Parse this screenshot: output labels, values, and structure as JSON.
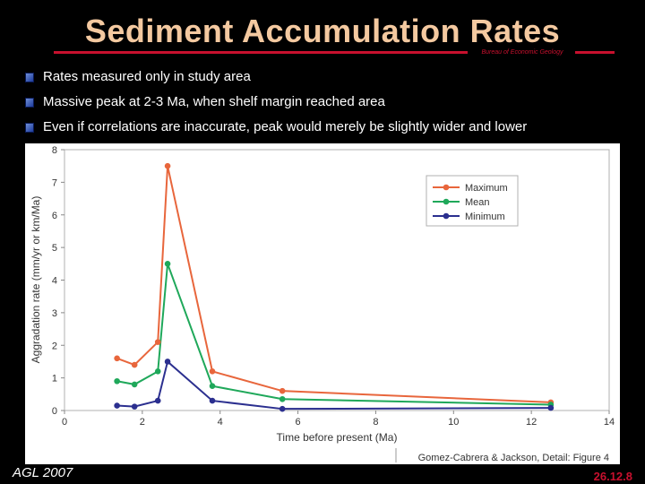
{
  "slide": {
    "title": "Sediment Accumulation Rates",
    "org_label": "Bureau of Economic Geology",
    "bullets": [
      "Rates measured only in study area",
      "Massive peak at 2-3 Ma, when shelf margin reached area",
      "Even if correlations are inaccurate, peak would merely be slightly wider and lower"
    ],
    "footer_left": "AGL 2007",
    "footer_right": "26.12.8",
    "accent_color": "#c8102e",
    "title_color": "#f4c9a0"
  },
  "chart_data": {
    "type": "line",
    "xlabel": "Time before present (Ma)",
    "ylabel": "Aggradation rate (mm/yr or km/Ma)",
    "xlim": [
      0,
      14
    ],
    "ylim": [
      0,
      8
    ],
    "xticks": [
      "0",
      "2",
      "4",
      "6",
      "8",
      "10",
      "12",
      "14"
    ],
    "yticks": [
      "0",
      "1",
      "2",
      "3",
      "4",
      "5",
      "6",
      "7",
      "8"
    ],
    "grid": false,
    "legend_position": "top-right",
    "caption": "Gomez-Cabrera & Jackson, Detail: Figure 4",
    "series": [
      {
        "name": "Maximum",
        "color": "#e8663c",
        "x": [
          1.35,
          1.8,
          2.4,
          2.65,
          3.8,
          5.6,
          12.5
        ],
        "y": [
          1.6,
          1.4,
          2.1,
          7.5,
          1.2,
          0.6,
          0.25
        ]
      },
      {
        "name": "Mean",
        "color": "#1fa85a",
        "x": [
          1.35,
          1.8,
          2.4,
          2.65,
          3.8,
          5.6,
          12.5
        ],
        "y": [
          0.9,
          0.8,
          1.2,
          4.5,
          0.75,
          0.35,
          0.18
        ]
      },
      {
        "name": "Minimum",
        "color": "#2b2f8f",
        "x": [
          1.35,
          1.8,
          2.4,
          2.65,
          3.8,
          5.6,
          12.5
        ],
        "y": [
          0.15,
          0.12,
          0.3,
          1.5,
          0.3,
          0.05,
          0.08
        ]
      }
    ]
  }
}
